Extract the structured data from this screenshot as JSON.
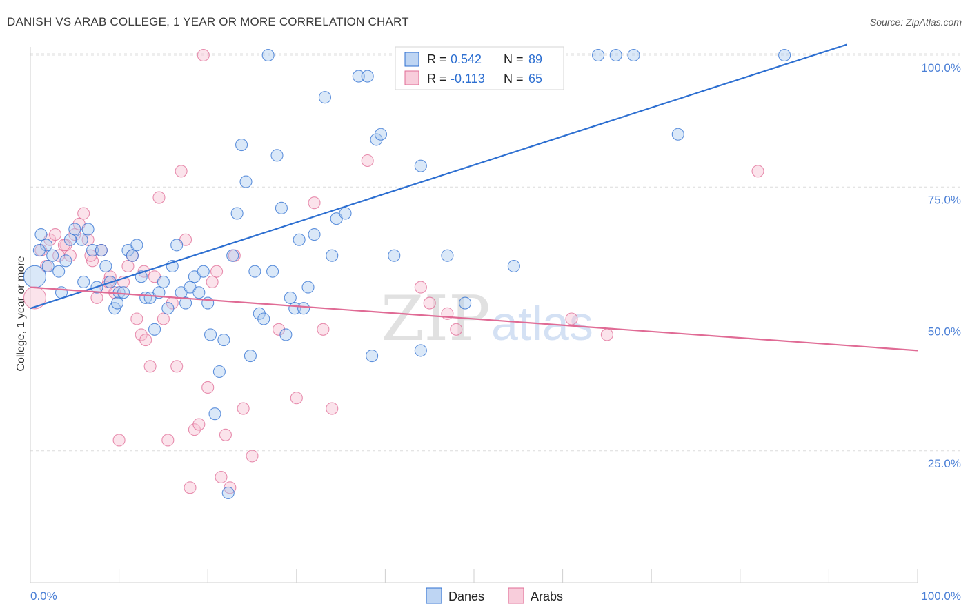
{
  "title": "DANISH VS ARAB COLLEGE, 1 YEAR OR MORE CORRELATION CHART",
  "source": "Source: ZipAtlas.com",
  "watermark": {
    "part1": "ZIP",
    "part2": "atlas"
  },
  "colors": {
    "danes": "#2d6fd1",
    "danes_fill": "#aecbf0",
    "arabs": "#e06b95",
    "arabs_fill": "#f6c1d2",
    "axis_label": "#4a7fd6",
    "grid": "#dcdcdc"
  },
  "legend_top": {
    "rows": [
      {
        "r_label": "R =",
        "r_value": "0.542",
        "n_label": "N =",
        "n_value": "89"
      },
      {
        "r_label": "R =",
        "r_value": "-0.113",
        "n_label": "N =",
        "n_value": "65"
      }
    ]
  },
  "legend_bottom": {
    "items": [
      "Danes",
      "Arabs"
    ]
  },
  "chart_data": {
    "type": "scatter",
    "title": "DANISH VS ARAB COLLEGE, 1 YEAR OR MORE CORRELATION CHART",
    "xlabel": "",
    "ylabel": "College, 1 year or more",
    "xlim": [
      0,
      100
    ],
    "ylim": [
      0,
      100
    ],
    "x_tick_labels": [
      "0.0%",
      "100.0%"
    ],
    "y_tick_labels": [
      "25.0%",
      "50.0%",
      "75.0%",
      "100.0%"
    ],
    "y_ticks": [
      25,
      50,
      75,
      100
    ],
    "grid": true,
    "legend": "top-center",
    "series": [
      {
        "name": "Danes",
        "r": 0.542,
        "n": 89,
        "trend": {
          "x": [
            0,
            92
          ],
          "y": [
            52,
            102
          ]
        },
        "points": [
          {
            "x": 0.5,
            "y": 58,
            "big": true
          },
          {
            "x": 1.2,
            "y": 66
          },
          {
            "x": 1.8,
            "y": 64
          },
          {
            "x": 2.5,
            "y": 62
          },
          {
            "x": 3.2,
            "y": 59
          },
          {
            "x": 4,
            "y": 61
          },
          {
            "x": 4.5,
            "y": 65
          },
          {
            "x": 5,
            "y": 67
          },
          {
            "x": 5.8,
            "y": 65
          },
          {
            "x": 6.5,
            "y": 67
          },
          {
            "x": 7,
            "y": 63
          },
          {
            "x": 7.5,
            "y": 56
          },
          {
            "x": 8,
            "y": 63
          },
          {
            "x": 8.5,
            "y": 60
          },
          {
            "x": 9,
            "y": 57
          },
          {
            "x": 9.5,
            "y": 52
          },
          {
            "x": 10,
            "y": 55
          },
          {
            "x": 10.5,
            "y": 55
          },
          {
            "x": 11,
            "y": 63
          },
          {
            "x": 11.5,
            "y": 62
          },
          {
            "x": 12,
            "y": 64
          },
          {
            "x": 12.5,
            "y": 58
          },
          {
            "x": 13,
            "y": 54
          },
          {
            "x": 13.5,
            "y": 54
          },
          {
            "x": 14,
            "y": 48
          },
          {
            "x": 14.5,
            "y": 55
          },
          {
            "x": 15,
            "y": 57
          },
          {
            "x": 15.5,
            "y": 52
          },
          {
            "x": 16,
            "y": 60
          },
          {
            "x": 16.5,
            "y": 64
          },
          {
            "x": 17,
            "y": 55
          },
          {
            "x": 17.5,
            "y": 53
          },
          {
            "x": 18,
            "y": 56
          },
          {
            "x": 18.5,
            "y": 58
          },
          {
            "x": 19,
            "y": 55
          },
          {
            "x": 19.5,
            "y": 59
          },
          {
            "x": 20,
            "y": 53
          },
          {
            "x": 20.3,
            "y": 47
          },
          {
            "x": 20.8,
            "y": 32
          },
          {
            "x": 21.3,
            "y": 40
          },
          {
            "x": 21.8,
            "y": 46
          },
          {
            "x": 22.3,
            "y": 17
          },
          {
            "x": 22.8,
            "y": 62
          },
          {
            "x": 23.3,
            "y": 70
          },
          {
            "x": 23.8,
            "y": 83
          },
          {
            "x": 24.3,
            "y": 76
          },
          {
            "x": 24.8,
            "y": 43
          },
          {
            "x": 25.3,
            "y": 59
          },
          {
            "x": 25.8,
            "y": 51
          },
          {
            "x": 26.3,
            "y": 50
          },
          {
            "x": 26.8,
            "y": 100
          },
          {
            "x": 27.3,
            "y": 59
          },
          {
            "x": 27.8,
            "y": 81
          },
          {
            "x": 28.3,
            "y": 71
          },
          {
            "x": 28.8,
            "y": 47
          },
          {
            "x": 29.3,
            "y": 54
          },
          {
            "x": 29.8,
            "y": 52
          },
          {
            "x": 30.3,
            "y": 65
          },
          {
            "x": 30.8,
            "y": 52
          },
          {
            "x": 31.3,
            "y": 56
          },
          {
            "x": 32,
            "y": 66
          },
          {
            "x": 33.2,
            "y": 92
          },
          {
            "x": 34,
            "y": 62
          },
          {
            "x": 34.5,
            "y": 69
          },
          {
            "x": 35.5,
            "y": 70
          },
          {
            "x": 37,
            "y": 96
          },
          {
            "x": 38,
            "y": 96
          },
          {
            "x": 38.5,
            "y": 43
          },
          {
            "x": 39,
            "y": 84
          },
          {
            "x": 39.5,
            "y": 85
          },
          {
            "x": 41,
            "y": 62
          },
          {
            "x": 42,
            "y": 100
          },
          {
            "x": 43,
            "y": 100
          },
          {
            "x": 44,
            "y": 79
          },
          {
            "x": 44,
            "y": 44
          },
          {
            "x": 47,
            "y": 62
          },
          {
            "x": 49,
            "y": 53
          },
          {
            "x": 54,
            "y": 100
          },
          {
            "x": 54.5,
            "y": 60
          },
          {
            "x": 64,
            "y": 100
          },
          {
            "x": 66,
            "y": 100
          },
          {
            "x": 68,
            "y": 100
          },
          {
            "x": 73,
            "y": 85
          },
          {
            "x": 85,
            "y": 100
          },
          {
            "x": 1,
            "y": 63
          },
          {
            "x": 2,
            "y": 60
          },
          {
            "x": 3.5,
            "y": 55
          },
          {
            "x": 6,
            "y": 57
          },
          {
            "x": 9.8,
            "y": 53
          }
        ]
      },
      {
        "name": "Arabs",
        "r": -0.113,
        "n": 65,
        "trend": {
          "x": [
            0,
            100
          ],
          "y": [
            56,
            44
          ]
        },
        "points": [
          {
            "x": 0.5,
            "y": 54,
            "big": true
          },
          {
            "x": 1.2,
            "y": 63
          },
          {
            "x": 2.2,
            "y": 65
          },
          {
            "x": 2.8,
            "y": 66
          },
          {
            "x": 3.2,
            "y": 62
          },
          {
            "x": 4,
            "y": 64
          },
          {
            "x": 4.5,
            "y": 62
          },
          {
            "x": 5,
            "y": 66
          },
          {
            "x": 5.5,
            "y": 68
          },
          {
            "x": 6,
            "y": 70
          },
          {
            "x": 6.5,
            "y": 65
          },
          {
            "x": 7,
            "y": 61
          },
          {
            "x": 7.5,
            "y": 54
          },
          {
            "x": 8,
            "y": 63
          },
          {
            "x": 8.5,
            "y": 56
          },
          {
            "x": 9,
            "y": 58
          },
          {
            "x": 9.5,
            "y": 55
          },
          {
            "x": 10,
            "y": 27
          },
          {
            "x": 10.5,
            "y": 57
          },
          {
            "x": 11,
            "y": 60
          },
          {
            "x": 11.5,
            "y": 62
          },
          {
            "x": 12,
            "y": 50
          },
          {
            "x": 12.5,
            "y": 47
          },
          {
            "x": 13,
            "y": 46
          },
          {
            "x": 13.5,
            "y": 41
          },
          {
            "x": 14,
            "y": 58
          },
          {
            "x": 14.5,
            "y": 73
          },
          {
            "x": 15,
            "y": 50
          },
          {
            "x": 15.5,
            "y": 27
          },
          {
            "x": 16,
            "y": 53
          },
          {
            "x": 16.5,
            "y": 41
          },
          {
            "x": 17,
            "y": 78
          },
          {
            "x": 17.5,
            "y": 65
          },
          {
            "x": 18,
            "y": 18
          },
          {
            "x": 18.5,
            "y": 29
          },
          {
            "x": 19,
            "y": 30
          },
          {
            "x": 19.5,
            "y": 100
          },
          {
            "x": 20,
            "y": 37
          },
          {
            "x": 20.5,
            "y": 57
          },
          {
            "x": 21,
            "y": 59
          },
          {
            "x": 21.5,
            "y": 20
          },
          {
            "x": 22,
            "y": 28
          },
          {
            "x": 22.5,
            "y": 18
          },
          {
            "x": 23,
            "y": 62
          },
          {
            "x": 24,
            "y": 33
          },
          {
            "x": 25,
            "y": 24
          },
          {
            "x": 28,
            "y": 48
          },
          {
            "x": 30,
            "y": 35
          },
          {
            "x": 32,
            "y": 72
          },
          {
            "x": 33,
            "y": 48
          },
          {
            "x": 34,
            "y": 33
          },
          {
            "x": 38,
            "y": 80
          },
          {
            "x": 44,
            "y": 56
          },
          {
            "x": 45,
            "y": 53
          },
          {
            "x": 47,
            "y": 51
          },
          {
            "x": 48,
            "y": 48
          },
          {
            "x": 58,
            "y": 100
          },
          {
            "x": 61,
            "y": 50
          },
          {
            "x": 65,
            "y": 47
          },
          {
            "x": 82,
            "y": 78
          },
          {
            "x": 1.8,
            "y": 60
          },
          {
            "x": 3.8,
            "y": 64
          },
          {
            "x": 6.8,
            "y": 62
          },
          {
            "x": 8.8,
            "y": 57
          },
          {
            "x": 12.8,
            "y": 59
          }
        ]
      }
    ]
  }
}
